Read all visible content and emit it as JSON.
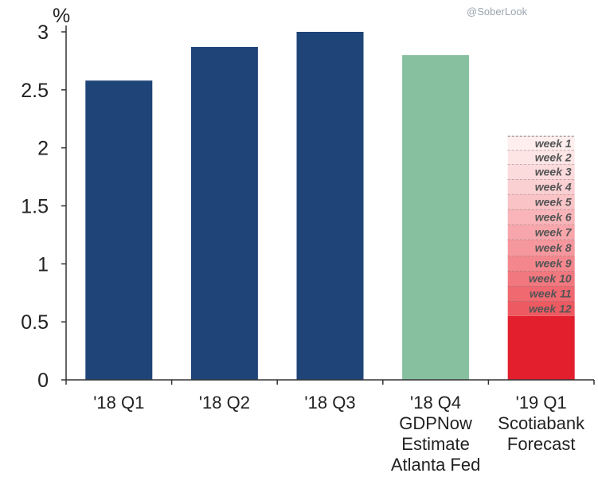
{
  "watermark": "@SoberLook",
  "chart_data": {
    "type": "bar",
    "ylabel": "%",
    "ylim": [
      0,
      3
    ],
    "yticks": [
      "0",
      "0.5",
      "1",
      "1.5",
      "2",
      "2.5",
      "3"
    ],
    "ytick_values": [
      0,
      0.5,
      1,
      1.5,
      2,
      2.5,
      3
    ],
    "categories": [
      [
        "'18 Q1"
      ],
      [
        "'18 Q2"
      ],
      [
        "'18 Q3"
      ],
      [
        "'18 Q4",
        "GDPNow",
        "Estimate",
        "Atlanta Fed"
      ],
      [
        "'19 Q1",
        "Scotiabank",
        "Forecast"
      ]
    ],
    "values": [
      2.58,
      2.87,
      3.0,
      2.8,
      2.1
    ],
    "colors": [
      "#1f4478",
      "#1f4478",
      "#1f4478",
      "#86c09f",
      "#f07a84"
    ],
    "stack": {
      "category_index": 4,
      "base": 0.55,
      "base_color": "#e31e2d",
      "segments": [
        {
          "label": "week 12",
          "top": 0.68,
          "color": "#ee5a62"
        },
        {
          "label": "week 11",
          "top": 0.81,
          "color": "#f06870"
        },
        {
          "label": "week 10",
          "top": 0.94,
          "color": "#f27880"
        },
        {
          "label": "week 9",
          "top": 1.07,
          "color": "#f4878e"
        },
        {
          "label": "week 8",
          "top": 1.21,
          "color": "#f6979d"
        },
        {
          "label": "week 7",
          "top": 1.34,
          "color": "#f7a6ab"
        },
        {
          "label": "week 6",
          "top": 1.47,
          "color": "#f9b5b9"
        },
        {
          "label": "week 5",
          "top": 1.6,
          "color": "#fac3c6"
        },
        {
          "label": "week 4",
          "top": 1.73,
          "color": "#fbd0d3"
        },
        {
          "label": "week 3",
          "top": 1.86,
          "color": "#fcdbdd"
        },
        {
          "label": "week 2",
          "top": 1.98,
          "color": "#fde5e6"
        },
        {
          "label": "week 1",
          "top": 2.1,
          "color": "#feeeee"
        }
      ]
    },
    "grid": false,
    "legend": "none"
  }
}
